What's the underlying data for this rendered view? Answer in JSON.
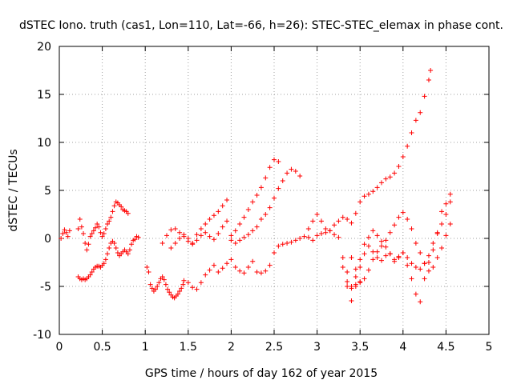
{
  "chart_data": {
    "type": "scatter",
    "title": "dSTEC Iono. truth (cas1, Lon=110, Lat=-66, h=26): STEC-STEC_elemax in phase cont.",
    "xlabel": "GPS time / hours of day 162 of year 2015",
    "ylabel": "dSTEC  / TECUs",
    "xlim": [
      0,
      5
    ],
    "ylim": [
      -10,
      20
    ],
    "xticks": [
      "0",
      "0.5",
      "1",
      "1.5",
      "2",
      "2.5",
      "3",
      "3.5",
      "4",
      "4.5",
      "5"
    ],
    "yticks": [
      "-10",
      "-5",
      "0",
      "5",
      "10",
      "15",
      "20"
    ],
    "grid": true,
    "marker": "+",
    "color": "#ff0000",
    "series": [
      {
        "name": "",
        "x": [
          0.02,
          0.04,
          0.06,
          0.08,
          0.1,
          0.12,
          0.22,
          0.24,
          0.26,
          0.28,
          0.3,
          0.32,
          0.34,
          0.36,
          0.38,
          0.4,
          0.42,
          0.44,
          0.46,
          0.48,
          0.5,
          0.52,
          0.54,
          0.56,
          0.58,
          0.6,
          0.62,
          0.64,
          0.66,
          0.68,
          0.7,
          0.72,
          0.74,
          0.76,
          0.78,
          0.8,
          0.22,
          0.24,
          0.26,
          0.28,
          0.3,
          0.32,
          0.34,
          0.36,
          0.38,
          0.4,
          0.42,
          0.44,
          0.46,
          0.48,
          0.5,
          0.52,
          0.54,
          0.56,
          0.58,
          0.6,
          0.62,
          0.64,
          0.66,
          0.68,
          0.7,
          0.72,
          0.74,
          0.76,
          0.78,
          0.8,
          0.82,
          0.84,
          0.86,
          0.88,
          0.9,
          0.92,
          1.02,
          1.04,
          1.06,
          1.08,
          1.1,
          1.12,
          1.14,
          1.16,
          1.18,
          1.2,
          1.22,
          1.24,
          1.26,
          1.28,
          1.3,
          1.32,
          1.34,
          1.36,
          1.38,
          1.4,
          1.42,
          1.44,
          1.45,
          1.5,
          1.55,
          1.6,
          1.65,
          1.7,
          1.75,
          1.8,
          1.85,
          1.9,
          1.95,
          2.0,
          2.05,
          2.1,
          2.15,
          2.2,
          2.25,
          2.3,
          2.35,
          2.4,
          2.45,
          2.5,
          2.55,
          2.6,
          2.65,
          2.7,
          2.75,
          2.8,
          2.85,
          2.9,
          2.95,
          3.0,
          3.05,
          3.1,
          3.15,
          3.2,
          3.25,
          3.3,
          3.35,
          3.4,
          3.45,
          3.5,
          1.2,
          1.25,
          1.3,
          1.35,
          1.4,
          1.45,
          1.5,
          1.55,
          1.6,
          1.65,
          1.7,
          1.75,
          1.8,
          1.85,
          1.9,
          1.95,
          2.0,
          2.05,
          2.1,
          2.15,
          2.2,
          2.25,
          2.3,
          2.35,
          2.4,
          2.45,
          2.5,
          2.55,
          2.6,
          2.65,
          2.7,
          2.75,
          2.8,
          1.3,
          1.35,
          1.4,
          1.45,
          1.5,
          1.55,
          1.6,
          1.65,
          1.7,
          1.75,
          1.8,
          1.85,
          1.9,
          1.95,
          2.0,
          2.05,
          2.1,
          2.15,
          2.2,
          2.25,
          2.3,
          2.35,
          2.4,
          2.45,
          2.5,
          2.55,
          2.9,
          2.95,
          3.0,
          3.05,
          3.1,
          3.15,
          3.2,
          3.25,
          3.3,
          3.35,
          3.4,
          3.45,
          3.5,
          3.55,
          3.6,
          3.65,
          3.7,
          3.75,
          3.8,
          3.85,
          3.9,
          3.95,
          4.0,
          4.05,
          4.1,
          4.15,
          4.2,
          4.25,
          4.3,
          4.32,
          3.3,
          3.35,
          3.4,
          3.45,
          3.5,
          3.55,
          3.6,
          3.65,
          3.7,
          3.75,
          3.8,
          3.85,
          3.9,
          3.95,
          4.0,
          4.05,
          4.1,
          4.15,
          4.2,
          4.25,
          4.3,
          4.35,
          4.4,
          4.45,
          4.5,
          4.55,
          3.35,
          3.4,
          3.45,
          3.5,
          3.55,
          3.6,
          3.65,
          3.7,
          3.75,
          3.8,
          3.85,
          3.9,
          3.95,
          4.0,
          4.05,
          4.1,
          4.15,
          4.2,
          4.25,
          4.3,
          4.35,
          4.4,
          4.45,
          4.5,
          4.55,
          3.4,
          3.45,
          3.5,
          3.55,
          3.6,
          3.65,
          3.7,
          3.75,
          3.8,
          3.85,
          3.9,
          3.95,
          4.0,
          4.05,
          4.1,
          4.15,
          4.2,
          4.25,
          4.3,
          4.35,
          4.4,
          4.45,
          4.5,
          4.55
        ],
        "y": [
          0.0,
          0.5,
          0.9,
          0.6,
          0.2,
          0.8,
          1.0,
          2.0,
          1.2,
          0.5,
          -0.5,
          -1.2,
          -0.6,
          0.2,
          0.5,
          0.8,
          1.1,
          1.5,
          1.2,
          0.6,
          0.2,
          0.5,
          1.0,
          1.5,
          1.8,
          2.2,
          2.8,
          3.4,
          3.8,
          3.7,
          3.5,
          3.3,
          3.0,
          2.9,
          2.8,
          2.6,
          -4.0,
          -4.2,
          -4.3,
          -4.2,
          -4.3,
          -4.2,
          -4.0,
          -3.8,
          -3.5,
          -3.2,
          -3.0,
          -2.9,
          -2.9,
          -3.0,
          -2.8,
          -2.6,
          -2.2,
          -1.6,
          -1.0,
          -0.5,
          -0.3,
          -0.5,
          -1.0,
          -1.5,
          -1.8,
          -1.6,
          -1.4,
          -1.2,
          -1.4,
          -1.6,
          -1.2,
          -0.6,
          -0.2,
          -0.1,
          0.2,
          0.1,
          -3.0,
          -3.5,
          -4.8,
          -5.2,
          -5.5,
          -5.3,
          -5.0,
          -4.6,
          -4.2,
          -4.0,
          -4.3,
          -4.8,
          -5.3,
          -5.6,
          -5.9,
          -6.1,
          -6.2,
          -6.0,
          -5.8,
          -5.5,
          -5.2,
          -4.8,
          -4.4,
          -4.6,
          -5.1,
          -5.3,
          -4.6,
          -3.8,
          -3.3,
          -2.8,
          -3.5,
          -3.1,
          -2.6,
          -2.2,
          -3.0,
          -3.4,
          -3.6,
          -3.0,
          -2.4,
          -3.5,
          -3.6,
          -3.4,
          -2.8,
          -1.5,
          -0.8,
          -0.6,
          -0.5,
          -0.4,
          -0.2,
          0.0,
          0.2,
          0.1,
          -0.2,
          0.3,
          0.5,
          0.6,
          0.8,
          0.4,
          0.1,
          -3.0,
          -4.5,
          -5.0,
          -4.8,
          -4.6,
          -0.5,
          0.3,
          0.9,
          1.0,
          0.6,
          0.2,
          -0.3,
          -0.6,
          0.4,
          1.0,
          1.5,
          2.0,
          2.4,
          2.8,
          3.4,
          4.0,
          -0.2,
          -0.5,
          -0.2,
          0.1,
          0.4,
          0.8,
          1.2,
          2.0,
          2.5,
          3.2,
          4.2,
          5.2,
          6.0,
          6.8,
          7.2,
          7.0,
          6.5,
          -1.0,
          -0.5,
          0.0,
          0.4,
          0.0,
          -0.5,
          -0.2,
          0.3,
          0.6,
          0.2,
          -0.1,
          0.5,
          1.2,
          1.8,
          0.3,
          0.8,
          1.5,
          2.2,
          3.0,
          3.8,
          4.5,
          5.3,
          6.3,
          7.4,
          8.2,
          8.0,
          1.0,
          1.8,
          2.5,
          1.8,
          1.0,
          0.8,
          1.4,
          1.8,
          2.2,
          2.0,
          1.6,
          2.6,
          3.8,
          4.4,
          4.6,
          4.9,
          5.3,
          5.8,
          6.2,
          6.4,
          6.8,
          7.5,
          8.5,
          9.6,
          11.0,
          12.3,
          13.1,
          14.8,
          16.5,
          17.5,
          -2.0,
          -3.5,
          -5.2,
          -4.0,
          -2.2,
          -0.6,
          0.1,
          0.8,
          0.3,
          -0.3,
          -0.9,
          -1.6,
          -2.4,
          -2.0,
          -1.5,
          -2.8,
          -4.2,
          -5.8,
          -6.6,
          -4.2,
          -2.5,
          -1.2,
          0.6,
          2.8,
          3.6,
          4.6,
          -5.0,
          -6.5,
          -5.0,
          -3.0,
          -1.6,
          -0.8,
          -1.4,
          -2.0,
          -2.3,
          -1.8,
          -1.6,
          -2.2,
          -1.9,
          -1.5,
          -2.0,
          -2.6,
          -3.0,
          -3.2,
          -2.6,
          -1.8,
          -0.5,
          0.5,
          1.5,
          2.5,
          3.8,
          -2.0,
          -3.2,
          -4.5,
          -4.2,
          -3.3,
          -2.2,
          -1.4,
          -0.8,
          -0.2,
          0.6,
          1.4,
          2.2,
          2.7,
          2.0,
          1.0,
          -0.5,
          -1.5,
          -2.6,
          -3.4,
          -3.0,
          -2.0,
          -1.0,
          0.3,
          1.5
        ]
      }
    ]
  }
}
